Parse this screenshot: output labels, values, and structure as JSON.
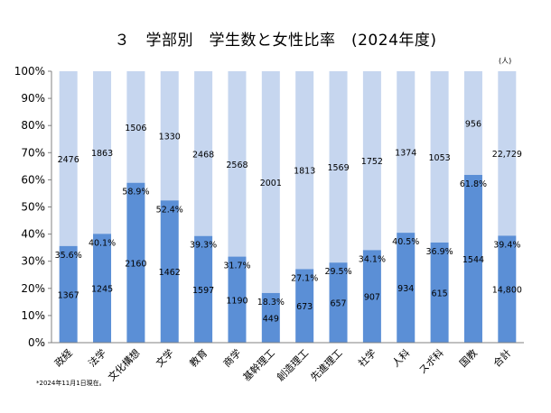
{
  "chart_data": {
    "type": "bar",
    "stacked": "percent",
    "title": "３　学部別　学生数と女性比率　(2024年度)",
    "unit_label": "(人)",
    "footnote": "*2024年11月1日現在。",
    "ylim": [
      0,
      100
    ],
    "yticks": [
      "0%",
      "10%",
      "20%",
      "30%",
      "40%",
      "50%",
      "60%",
      "70%",
      "80%",
      "90%",
      "100%"
    ],
    "grid": false,
    "categories": [
      "政経",
      "法学",
      "文化構想",
      "文学",
      "教育",
      "商学",
      "基幹理工",
      "創造理工",
      "先進理工",
      "社学",
      "人科",
      "スポ科",
      "国教",
      "合計"
    ],
    "series": [
      {
        "color": "#5b8fd6",
        "values": [
          35.6,
          40.1,
          58.9,
          52.4,
          39.3,
          31.7,
          18.3,
          27.1,
          29.5,
          34.1,
          40.5,
          36.9,
          61.8,
          39.4
        ],
        "pct_labels": [
          "35.6%",
          "40.1%",
          "58.9%",
          "52.4%",
          "39.3%",
          "31.7%",
          "18.3%",
          "27.1%",
          "29.5%",
          "34.1%",
          "40.5%",
          "36.9%",
          "61.8%",
          "39.4%"
        ],
        "count_labels": [
          "1367",
          "1245",
          "2160",
          "1462",
          "1597",
          "1190",
          "449",
          "673",
          "657",
          "907",
          "934",
          "615",
          "1544",
          "14,800"
        ]
      },
      {
        "color": "#c6d6ef",
        "count_labels": [
          "2476",
          "1863",
          "1506",
          "1330",
          "2468",
          "2568",
          "2001",
          "1813",
          "1569",
          "1752",
          "1374",
          "1053",
          "956",
          "22,729"
        ]
      }
    ]
  }
}
